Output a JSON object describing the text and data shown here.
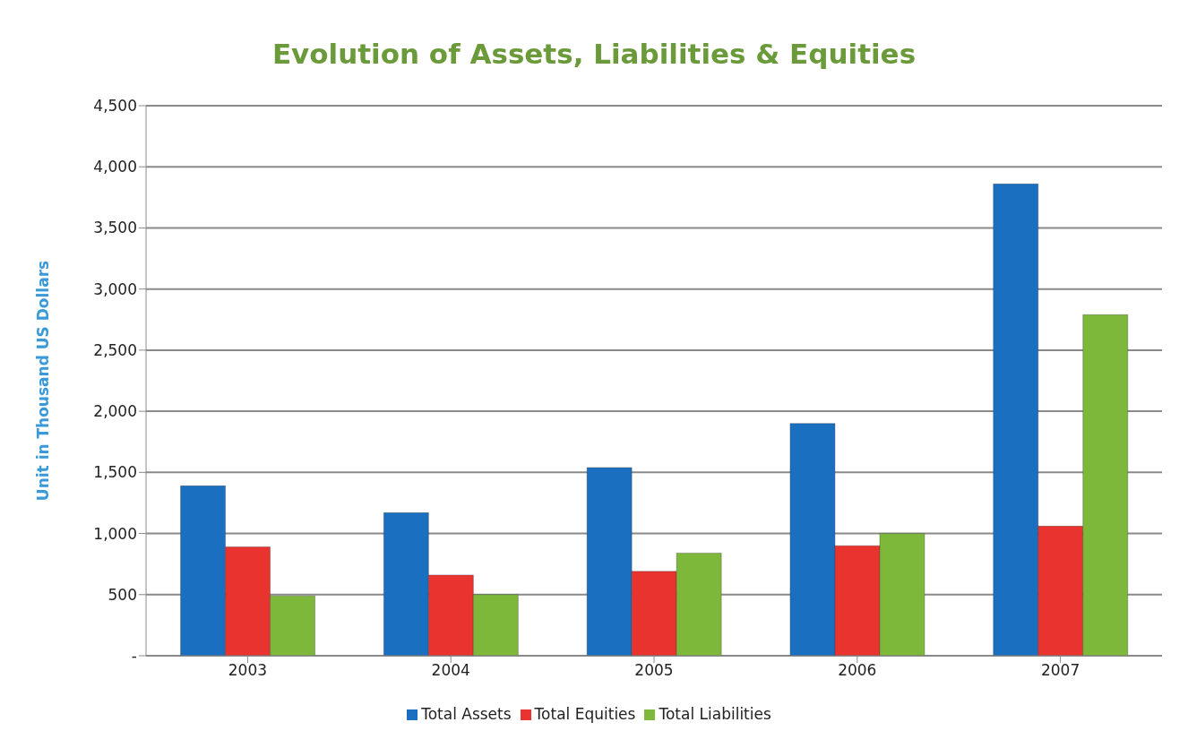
{
  "chart_data": {
    "type": "bar",
    "title": "Evolution of Assets, Liabilities & Equities",
    "ylabel": "Unit in Thousand US Dollars",
    "categories": [
      "2003",
      "2004",
      "2005",
      "2006",
      "2007"
    ],
    "series": [
      {
        "name": "Total Assets",
        "color": "#1a6fc0",
        "values": [
          1390,
          1170,
          1540,
          1900,
          3860
        ]
      },
      {
        "name": "Total Equities",
        "color": "#e8332e",
        "values": [
          890,
          660,
          690,
          900,
          1060
        ]
      },
      {
        "name": "Total Liabilities",
        "color": "#7db83a",
        "values": [
          490,
          500,
          840,
          1000,
          2790
        ]
      }
    ],
    "ylim": [
      0,
      4500
    ],
    "yticks": [
      {
        "value": 0,
        "label": "-"
      },
      500,
      {
        "value": 1000,
        "label": "1,000"
      },
      {
        "value": 1500,
        "label": "1,500"
      },
      {
        "value": 2000,
        "label": "2,000"
      },
      {
        "value": 2500,
        "label": "2,500"
      },
      {
        "value": 3000,
        "label": "3,000"
      },
      {
        "value": 3500,
        "label": "3,500"
      },
      {
        "value": 4000,
        "label": "4,000"
      },
      {
        "value": 4500,
        "label": "4,500"
      }
    ],
    "grid": "y",
    "legend": "bottom"
  }
}
